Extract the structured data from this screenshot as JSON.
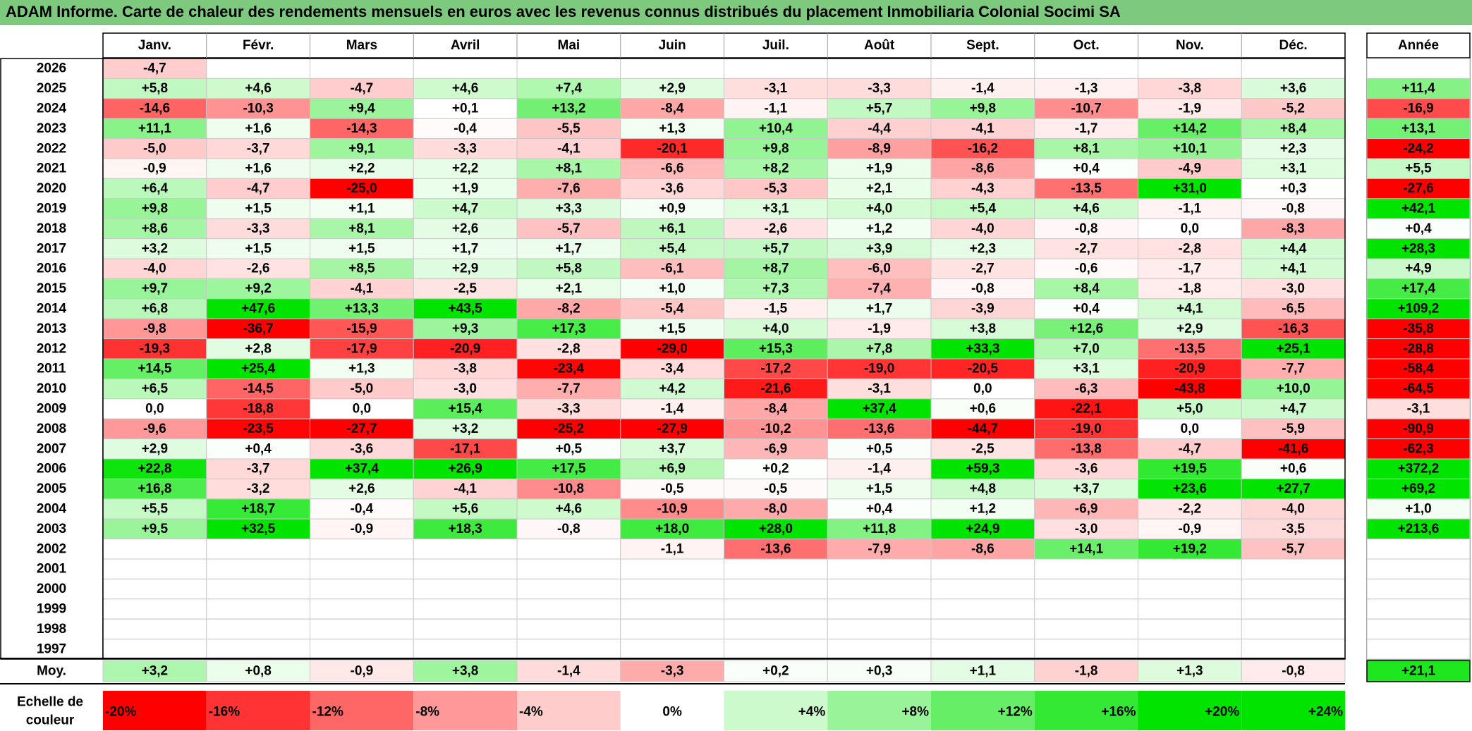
{
  "title": "ADAM Informe. Carte de chaleur des rendements mensuels en euros avec les revenus connus distribués du placement Inmobiliaria Colonial Socimi SA",
  "chart_data": {
    "type": "heatmap",
    "months": [
      "Janv.",
      "Févr.",
      "Mars",
      "Avril",
      "Mai",
      "Juin",
      "Juil.",
      "Août",
      "Sept.",
      "Oct.",
      "Nov.",
      "Déc."
    ],
    "year_header": "Année",
    "rows": [
      {
        "year": "2026",
        "values": [
          "-4,7",
          "",
          "",
          "",
          "",
          "",
          "",
          "",
          "",
          "",
          "",
          ""
        ],
        "annual": ""
      },
      {
        "year": "2025",
        "values": [
          "+5,8",
          "+4,6",
          "-4,7",
          "+4,6",
          "+7,4",
          "+2,9",
          "-3,1",
          "-3,3",
          "-1,4",
          "-1,3",
          "-3,8",
          "+3,6"
        ],
        "annual": "+11,4"
      },
      {
        "year": "2024",
        "values": [
          "-14,6",
          "-10,3",
          "+9,4",
          "+0,1",
          "+13,2",
          "-8,4",
          "-1,1",
          "+5,7",
          "+9,8",
          "-10,7",
          "-1,9",
          "-5,2"
        ],
        "annual": "-16,9"
      },
      {
        "year": "2023",
        "values": [
          "+11,1",
          "+1,6",
          "-14,3",
          "-0,4",
          "-5,5",
          "+1,3",
          "+10,4",
          "-4,4",
          "-4,1",
          "-1,7",
          "+14,2",
          "+8,4"
        ],
        "annual": "+13,1"
      },
      {
        "year": "2022",
        "values": [
          "-5,0",
          "-3,7",
          "+9,1",
          "-3,3",
          "-4,1",
          "-20,1",
          "+9,8",
          "-8,9",
          "-16,2",
          "+8,1",
          "+10,1",
          "+2,3"
        ],
        "annual": "-24,2"
      },
      {
        "year": "2021",
        "values": [
          "-0,9",
          "+1,6",
          "+2,2",
          "+2,2",
          "+8,1",
          "-6,6",
          "+8,2",
          "+1,9",
          "-8,6",
          "+0,4",
          "-4,9",
          "+3,1"
        ],
        "annual": "+5,5"
      },
      {
        "year": "2020",
        "values": [
          "+6,4",
          "-4,7",
          "-25,0",
          "+1,9",
          "-7,6",
          "-3,6",
          "-5,3",
          "+2,1",
          "-4,3",
          "-13,5",
          "+31,0",
          "+0,3"
        ],
        "annual": "-27,6"
      },
      {
        "year": "2019",
        "values": [
          "+9,8",
          "+1,5",
          "+1,1",
          "+4,7",
          "+3,3",
          "+0,9",
          "+3,1",
          "+4,0",
          "+5,4",
          "+4,6",
          "-1,1",
          "-0,8"
        ],
        "annual": "+42,1"
      },
      {
        "year": "2018",
        "values": [
          "+8,6",
          "-3,3",
          "+8,1",
          "+2,6",
          "-5,7",
          "+6,1",
          "-2,6",
          "+1,2",
          "-4,0",
          "-0,8",
          "0,0",
          "-8,3"
        ],
        "annual": "+0,4"
      },
      {
        "year": "2017",
        "values": [
          "+3,2",
          "+1,5",
          "+1,5",
          "+1,7",
          "+1,7",
          "+5,4",
          "+5,7",
          "+3,9",
          "+2,3",
          "-2,7",
          "-2,8",
          "+4,4"
        ],
        "annual": "+28,3"
      },
      {
        "year": "2016",
        "values": [
          "-4,0",
          "-2,6",
          "+8,5",
          "+2,9",
          "+5,8",
          "-6,1",
          "+8,7",
          "-6,0",
          "-2,7",
          "-0,6",
          "-1,7",
          "+4,1"
        ],
        "annual": "+4,9"
      },
      {
        "year": "2015",
        "values": [
          "+9,7",
          "+9,2",
          "-4,1",
          "-2,5",
          "+2,1",
          "+1,0",
          "+7,3",
          "-7,4",
          "-0,8",
          "+8,4",
          "-1,8",
          "-3,0"
        ],
        "annual": "+17,4"
      },
      {
        "year": "2014",
        "values": [
          "+6,8",
          "+47,6",
          "+13,3",
          "+43,5",
          "-8,2",
          "-5,4",
          "-1,5",
          "+1,7",
          "-3,9",
          "+0,4",
          "+4,1",
          "-6,5"
        ],
        "annual": "+109,2"
      },
      {
        "year": "2013",
        "values": [
          "-9,8",
          "-36,7",
          "-15,9",
          "+9,3",
          "+17,3",
          "+1,5",
          "+4,0",
          "-1,9",
          "+3,8",
          "+12,6",
          "+2,9",
          "-16,3"
        ],
        "annual": "-35,8"
      },
      {
        "year": "2012",
        "values": [
          "-19,3",
          "+2,8",
          "-17,9",
          "-20,9",
          "-2,8",
          "-29,0",
          "+15,3",
          "+7,8",
          "+33,3",
          "+7,0",
          "-13,5",
          "+25,1"
        ],
        "annual": "-28,8"
      },
      {
        "year": "2011",
        "values": [
          "+14,5",
          "+25,4",
          "+1,3",
          "-3,8",
          "-23,4",
          "-3,4",
          "-17,2",
          "-19,0",
          "-20,5",
          "+3,1",
          "-20,9",
          "-7,7"
        ],
        "annual": "-58,4"
      },
      {
        "year": "2010",
        "values": [
          "+6,5",
          "-14,5",
          "-5,0",
          "-3,0",
          "-7,7",
          "+4,2",
          "-21,6",
          "-3,1",
          "0,0",
          "-6,3",
          "-43,8",
          "+10,0"
        ],
        "annual": "-64,5"
      },
      {
        "year": "2009",
        "values": [
          "0,0",
          "-18,8",
          "0,0",
          "+15,4",
          "-3,3",
          "-1,4",
          "-8,4",
          "+37,4",
          "+0,6",
          "-22,1",
          "+5,0",
          "+4,7"
        ],
        "annual": "-3,1"
      },
      {
        "year": "2008",
        "values": [
          "-9,6",
          "-23,5",
          "-27,7",
          "+3,2",
          "-25,2",
          "-27,9",
          "-10,2",
          "-13,6",
          "-44,7",
          "-19,0",
          "0,0",
          "-5,9"
        ],
        "annual": "-90,9"
      },
      {
        "year": "2007",
        "values": [
          "+2,9",
          "+0,4",
          "-3,6",
          "-17,1",
          "+0,5",
          "+3,7",
          "-6,9",
          "+0,5",
          "-2,5",
          "-13,8",
          "-4,7",
          "-41,6"
        ],
        "annual": "-62,3"
      },
      {
        "year": "2006",
        "values": [
          "+22,8",
          "-3,7",
          "+37,4",
          "+26,9",
          "+17,5",
          "+6,9",
          "+0,2",
          "-1,4",
          "+59,3",
          "-3,6",
          "+19,5",
          "+0,6"
        ],
        "annual": "+372,2"
      },
      {
        "year": "2005",
        "values": [
          "+16,8",
          "-3,2",
          "+2,6",
          "-4,1",
          "-10,8",
          "-0,5",
          "-0,5",
          "+1,5",
          "+4,8",
          "+3,7",
          "+23,6",
          "+27,7"
        ],
        "annual": "+69,2"
      },
      {
        "year": "2004",
        "values": [
          "+5,5",
          "+18,7",
          "-0,4",
          "+5,6",
          "+4,6",
          "-10,9",
          "-8,0",
          "+0,4",
          "+1,2",
          "-6,9",
          "-2,2",
          "-4,0"
        ],
        "annual": "+1,0"
      },
      {
        "year": "2003",
        "values": [
          "+9,5",
          "+32,5",
          "-0,9",
          "+18,3",
          "-0,8",
          "+18,0",
          "+28,0",
          "+11,8",
          "+24,9",
          "-3,0",
          "-0,9",
          "-3,5"
        ],
        "annual": "+213,6"
      },
      {
        "year": "2002",
        "values": [
          "",
          "",
          "",
          "",
          "",
          "-1,1",
          "-13,6",
          "-7,9",
          "-8,6",
          "+14,1",
          "+19,2",
          "-5,7"
        ],
        "annual": ""
      },
      {
        "year": "2001",
        "values": [
          "",
          "",
          "",
          "",
          "",
          "",
          "",
          "",
          "",
          "",
          "",
          ""
        ],
        "annual": ""
      },
      {
        "year": "2000",
        "values": [
          "",
          "",
          "",
          "",
          "",
          "",
          "",
          "",
          "",
          "",
          "",
          ""
        ],
        "annual": ""
      },
      {
        "year": "1999",
        "values": [
          "",
          "",
          "",
          "",
          "",
          "",
          "",
          "",
          "",
          "",
          "",
          ""
        ],
        "annual": ""
      },
      {
        "year": "1998",
        "values": [
          "",
          "",
          "",
          "",
          "",
          "",
          "",
          "",
          "",
          "",
          "",
          ""
        ],
        "annual": ""
      },
      {
        "year": "1997",
        "values": [
          "",
          "",
          "",
          "",
          "",
          "",
          "",
          "",
          "",
          "",
          "",
          ""
        ],
        "annual": ""
      }
    ],
    "average": {
      "label": "Moy.",
      "values": [
        "+3,2",
        "+0,8",
        "-0,9",
        "+3,8",
        "-1,4",
        "-3,3",
        "+0,2",
        "+0,3",
        "+1,1",
        "-1,8",
        "+1,3",
        "-0,8"
      ],
      "annual": "+21,1"
    },
    "scale": {
      "label_line1": "Echelle de",
      "label_line2": "couleur",
      "steps": [
        "-20%",
        "-16%",
        "-12%",
        "-8%",
        "-4%",
        "0%",
        "+4%",
        "+8%",
        "+12%",
        "+16%",
        "+20%",
        "+24%"
      ]
    },
    "colors": {
      "title_bar": "#7dc97d",
      "negative": "#ff0000",
      "positive": "#00e400",
      "neutral": "#ffffff"
    }
  }
}
